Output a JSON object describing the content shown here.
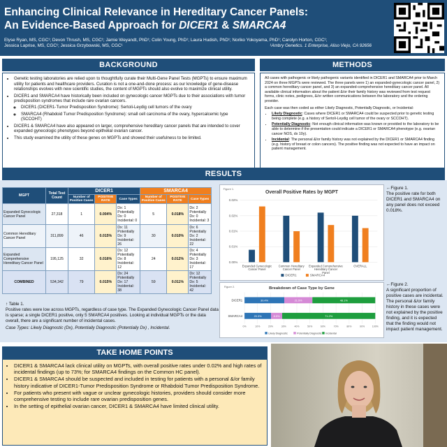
{
  "header": {
    "title_line1": "Enhancing Clinical Relevance in Hereditary Cancer Panels:",
    "title_line2_prefix": "An Evidence-Based Approach for ",
    "title_line2_gene1": "DICER1",
    "title_line2_amp": " & ",
    "title_line2_gene2": "SMARCA4",
    "authors_line1": "Elyse Ryan, MS, CGC¹; Devon Thrush, MS, CGC¹; Jamie Weyandt, PhD¹; Colin Young, PhD¹; Laura Hudish, PhD¹; Noriko Yokoyama, PhD¹; Carolyn Horton, CGC¹;",
    "authors_line2": "Jessica Laprise, MS, CGC¹; Jessica Grzybowski, MS, CGC¹",
    "affiliation": "¹Ambry Genetics. 1 Enterprise, Aliso Viejo, CA 92656"
  },
  "background": {
    "heading": "BACKGROUND",
    "b1": "Genetic testing laboratories are relied upon to thoughtfully curate their Multi-Gene Panel Tests (MGPTs) to ensure maximum utility for patients and healthcare providers. Curation is not a one-and-done process: as our knowledge of gene-disease relationships evolves with new scientific studies, the content of MGPTs should also evolve to maximize clinical utility.",
    "b2": "DICER1 and SMARCA4 have historically been included on gynecologic cancer MGPTs due to their associations with tumor predisposition syndromes that include rare ovarian cancers.",
    "b2a": "DICER1 (DICER1-Tumor Predisposition Syndrome): Sertoli-Leydig cell tumors of the ovary",
    "b2b": "SMARCA4 (Rhabdoid Tumor Predisposition Syndrome): small cell carcinoma of the ovary, hypercalcemic type (SCCOHT)",
    "b3": "DICER1 & SMARCA4 have also appeared on larger, comprehensive hereditary cancer panels that are intended to cover expanded gynecologic phenotypes beyond epithelial ovarian cancer.",
    "b4": "This study examined the utility of these genes on MGPTs and showed their usefulness to be limited."
  },
  "methods": {
    "heading": "METHODS",
    "p1": "All cases with pathogenic or likely pathogenic variants identified in DICER1 and SMARCA4 prior to March 2024 on three MGPTs were reviewed. The three panels were 1) an expanded-gynecologic cancer panel, 2) a common hereditary cancer panel, and 3) an expanded-comprehensive hereditary cancer panel. All available clinical information about the patient &/or their family history was reviewed from test request forms, clinic notes, pedigrees, &/or written communications between the laboratory and the ordering provider.",
    "p2": "Each case was then coded as either Likely Diagnostic, Potentially Diagnostic, or Incidental:",
    "m1_label": "Likely Diagnostic",
    "m1": ": Cases where DICER1 or SMARCA4 could be suspected prior to genetic testing being complete (e.g. a history of Sertoli-Leydig cell tumor of the ovary or SCCOHT).",
    "m2_label": "Potentially Diagnostic",
    "m2": ": Not enough clinical information was known or provided to the laboratory to be able to determine if the presentation could indicate a DICER1 or SMARCA4 phenotype (e.g. ovarian cancer NOS, dx 10y).",
    "m3_label": "Incidental",
    "m3": ": The personal &/or family history was not explained by the DICER1 or SMARCA4 finding (e.g. history of breast or colon cancers). The positive finding was not expected to have an impact on patient management."
  },
  "results": {
    "heading": "RESULTS",
    "table_label": "Table 1.",
    "col_mgpt": "MGPT",
    "col_total": "Total Test Count",
    "dicer_head": "DICER1",
    "smarca_head": "SMARCA4",
    "col_pos": "Number of Positive Cases",
    "col_rate": "POSITIVE RATE",
    "col_types": "Case Types",
    "rows": [
      {
        "name": "Expanded Gynecologic Cancer Panel",
        "total": "27,318",
        "d_pos": "1",
        "d_rate": "0.004%",
        "d_types": [
          "Dx: 1",
          "Potentially Dx: 0",
          "Incidental: 0"
        ],
        "s_pos": "5",
        "s_rate": "0.018%",
        "s_types": [
          "Dx: 2",
          "Potentially Dx: 0",
          "Incidental: 3"
        ]
      },
      {
        "name": "Common Hereditary Cancer Panel",
        "total": "311,899",
        "d_pos": "46",
        "d_rate": "0.015%",
        "d_types": [
          "Dx: 11",
          "Potentially Dx: 9",
          "Incidental: 26"
        ],
        "s_pos": "30",
        "s_rate": "0.010%",
        "s_types": [
          "Dx: 6",
          "Potentially Dx: 2",
          "Incidental: 22"
        ]
      },
      {
        "name": "Expanded Comprehensive Hereditary Cancer Panel",
        "total": "195,125",
        "d_pos": "32",
        "d_rate": "0.016%",
        "d_types": [
          "Dx: 12",
          "Potentially Dx: 8",
          "Incidental: 12"
        ],
        "s_pos": "24",
        "s_rate": "0.012%",
        "s_types": [
          "Dx: 4",
          "Potentially Dx: 3",
          "Incidental: 17"
        ]
      },
      {
        "name": "COMBINED",
        "total": "534,342",
        "d_pos": "79",
        "d_rate": "0.015%",
        "d_types": [
          "Dx: 24",
          "Potentially Dx: 17",
          "Incidental: 38"
        ],
        "s_pos": "59",
        "s_rate": "0.011%",
        "s_types": [
          "Dx: 12",
          "Potentially Dx: 5",
          "Incidental: 42"
        ]
      }
    ],
    "table_caption_1": "Table 1.",
    "table_caption_2": "Positive rates were low across MGPTs, regardless of case type. The Expanded Gynecologic Cancer Panel data is sparse; a single DICER1 positive, only 5 SMARCA4 positives. Looking at individual MGPTs or the data overall, there are a significant number of incidental cases.",
    "table_caption_3": "Case Types: Likely Diagnostic (Dx), Potentially Diagnostic (Potentially Dx) , Incidental.",
    "fig1_label": "Figure 1.",
    "fig1_caption": "The positive rate for both DICER1 and SMARCA4 on any panel does not exceed 0.018%.",
    "fig2_label": "Figure 2.",
    "fig2_caption": "A significant proportion of positive cases are incidental. The personal &/or family history in these cases were not explained by the positive finding, and it is expected that the finding would not impact patient management."
  },
  "chart_data": [
    {
      "type": "bar",
      "title": "Overall Positive Rates by MGPT",
      "categories": [
        "Expanded Gynecologic Cancer Panel",
        "Common Hereditary Cancer Panel",
        "Expanded Comprehensive Hereditary Cancer Panel",
        "OVERALL"
      ],
      "series": [
        {
          "name": "DICER1",
          "values": [
            0.004,
            0.015,
            0.016,
            0.015
          ],
          "color": "#1f4e79"
        },
        {
          "name": "SMARCA4",
          "values": [
            0.018,
            0.01,
            0.012,
            0.011
          ],
          "color": "#f07f1f"
        }
      ],
      "yticks": [
        "0.00%",
        "0.01%",
        "0.01%",
        "0.02%",
        "0.02%"
      ],
      "ylim": [
        0,
        0.02
      ],
      "legend": "bottom"
    },
    {
      "type": "bar",
      "orientation": "horizontal-stacked-100",
      "title": "Breakdown of Case Type by Gene",
      "categories": [
        "DICER1",
        "SMARCA4"
      ],
      "series": [
        {
          "name": "Likely Diagnostic",
          "values": [
            30.4,
            20.3
          ],
          "color": "#2e75b6"
        },
        {
          "name": "Potentially Diagnostic",
          "values": [
            21.5,
            8.5
          ],
          "color": "#d58ad6"
        },
        {
          "name": "Incidental",
          "values": [
            48.1,
            71.2
          ],
          "color": "#1e9e3e"
        }
      ],
      "labels": [
        [
          "30.4%",
          "21.5%",
          "48.1%"
        ],
        [
          "20.3%",
          "8.5%",
          "71.2%"
        ]
      ],
      "xticks": [
        "0%",
        "10%",
        "20%",
        "30%",
        "40%",
        "50%",
        "60%",
        "70%",
        "80%",
        "90%",
        "100%"
      ],
      "legend": "bottom"
    }
  ],
  "takehome": {
    "heading": "TAKE HOME POINTS",
    "t1": "DICER1 & SMARCA4 lack clinical utility on MGPTs, with overall positive rates under 0.02% and high rates of incidental findings (up to 73%; for SMARCA4 findings on the Common HC panel).",
    "t2": "DICER1 & SMARCA4 should be suspected and included in testing for patients with a personal &/or family history indicative of DICER1-Tumor Predisposition Syndrome or Rhabdoid Tumor Predisposition Syndrome.",
    "t3": "For patients who present with vague or unclear gynecologic histories, providers should consider more comprehensive testing to include rare ovarian predisposition genes.",
    "t4": "In the setting of epithelial ovarian cancer, DICER1 & SMARCA4 have limited clinical utility."
  }
}
